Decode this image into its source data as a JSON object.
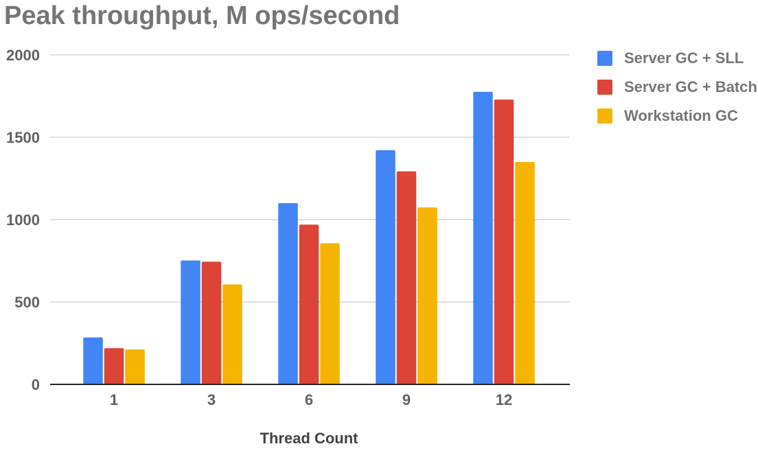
{
  "chart_data": {
    "type": "bar",
    "title": "Peak throughput, M ops/second",
    "xlabel": "Thread Count",
    "ylabel": "",
    "categories": [
      "1",
      "3",
      "6",
      "9",
      "12"
    ],
    "ylim": [
      0,
      2000
    ],
    "yticks": [
      "0",
      "500",
      "1000",
      "1500",
      "2000"
    ],
    "grid": true,
    "legend_position": "right",
    "series": [
      {
        "name": "Server GC + SLL",
        "color": "#4285f4",
        "values": [
          285,
          752,
          1100,
          1422,
          1776
        ]
      },
      {
        "name": "Server GC + Batch",
        "color": "#db4437",
        "values": [
          220,
          745,
          970,
          1293,
          1729
        ]
      },
      {
        "name": "Workstation GC",
        "color": "#f4b400",
        "values": [
          212,
          607,
          857,
          1074,
          1350
        ]
      }
    ]
  }
}
